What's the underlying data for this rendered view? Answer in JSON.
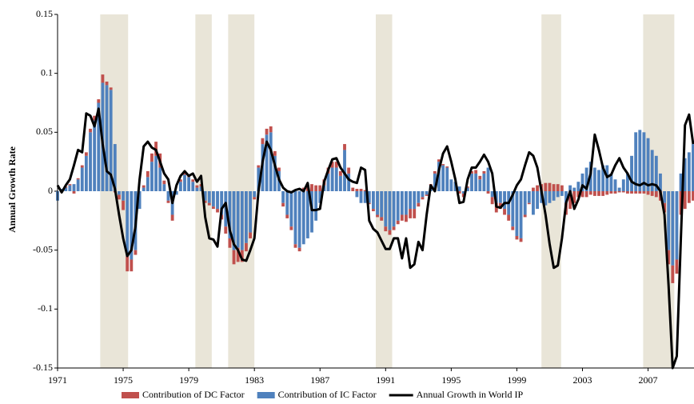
{
  "chart_data": {
    "type": "bar",
    "y_label": "Annual Growth Rate",
    "x": [
      1971,
      1971.25,
      1971.5,
      1971.75,
      1972,
      1972.25,
      1972.5,
      1972.75,
      1973,
      1973.25,
      1973.5,
      1973.75,
      1974,
      1974.25,
      1974.5,
      1974.75,
      1975,
      1975.25,
      1975.5,
      1975.75,
      1976,
      1976.25,
      1976.5,
      1976.75,
      1977,
      1977.25,
      1977.5,
      1977.75,
      1978,
      1978.25,
      1978.5,
      1978.75,
      1979,
      1979.25,
      1979.5,
      1979.75,
      1980,
      1980.25,
      1980.5,
      1980.75,
      1981,
      1981.25,
      1981.5,
      1981.75,
      1982,
      1982.25,
      1982.5,
      1982.75,
      1983,
      1983.25,
      1983.5,
      1983.75,
      1984,
      1984.25,
      1984.5,
      1984.75,
      1985,
      1985.25,
      1985.5,
      1985.75,
      1986,
      1986.25,
      1986.5,
      1986.75,
      1987,
      1987.25,
      1987.5,
      1987.75,
      1988,
      1988.25,
      1988.5,
      1988.75,
      1989,
      1989.25,
      1989.5,
      1989.75,
      1990,
      1990.25,
      1990.5,
      1990.75,
      1991,
      1991.25,
      1991.5,
      1991.75,
      1992,
      1992.25,
      1992.5,
      1992.75,
      1993,
      1993.25,
      1993.5,
      1993.75,
      1994,
      1994.25,
      1994.5,
      1994.75,
      1995,
      1995.25,
      1995.5,
      1995.75,
      1996,
      1996.25,
      1996.5,
      1996.75,
      1997,
      1997.25,
      1997.5,
      1997.75,
      1998,
      1998.25,
      1998.5,
      1998.75,
      1999,
      1999.25,
      1999.5,
      1999.75,
      2000,
      2000.25,
      2000.5,
      2000.75,
      2001,
      2001.25,
      2001.5,
      2001.75,
      2002,
      2002.25,
      2002.5,
      2002.75,
      2003,
      2003.25,
      2003.5,
      2003.75,
      2004,
      2004.25,
      2004.5,
      2004.75,
      2005,
      2005.25,
      2005.5,
      2005.75,
      2006,
      2006.25,
      2006.5,
      2006.75,
      2007,
      2007.25,
      2007.5,
      2007.75,
      2008,
      2008.25,
      2008.5,
      2008.75,
      2009,
      2009.25,
      2009.5,
      2009.75
    ],
    "series": [
      {
        "name": "Contribution of DC Factor",
        "color": "#c0504d",
        "kind": "bar",
        "values": [
          0,
          -0.001,
          0.001,
          0.001,
          -0.002,
          0.001,
          0.002,
          0.003,
          0.003,
          0.004,
          0.003,
          0.007,
          0.003,
          0.002,
          -0.001,
          -0.004,
          -0.008,
          -0.013,
          -0.01,
          -0.004,
          0,
          0.002,
          0.005,
          0.007,
          0.012,
          0.012,
          0.003,
          -0.002,
          -0.005,
          0,
          0.002,
          0.003,
          0.002,
          0.002,
          0.002,
          0.002,
          -0.002,
          -0.002,
          -0.002,
          -0.003,
          -0.004,
          -0.006,
          -0.008,
          -0.012,
          -0.012,
          -0.01,
          -0.007,
          -0.005,
          -0.002,
          0.002,
          0.005,
          0.005,
          0.005,
          0.004,
          0.003,
          -0.003,
          -0.003,
          -0.003,
          -0.003,
          -0.003,
          0.003,
          0.005,
          0.006,
          0.005,
          0.005,
          0.005,
          0.005,
          0.005,
          0.005,
          0.004,
          0.005,
          0.005,
          0.003,
          0.002,
          0.002,
          0.001,
          -0.001,
          -0.002,
          -0.002,
          -0.003,
          -0.004,
          -0.004,
          -0.003,
          -0.003,
          -0.005,
          -0.006,
          -0.008,
          -0.008,
          -0.003,
          -0.002,
          -0.001,
          0.001,
          0.002,
          0.002,
          0.001,
          0.001,
          0,
          0,
          -0.002,
          -0.003,
          0.001,
          0.002,
          0.003,
          0.003,
          0.002,
          -0.002,
          -0.006,
          -0.008,
          -0.005,
          -0.005,
          -0.005,
          -0.003,
          -0.003,
          -0.003,
          -0.002,
          -0.001,
          0.003,
          0.005,
          0.006,
          0.007,
          0.007,
          0.006,
          0.006,
          0.005,
          -0.01,
          -0.015,
          -0.01,
          -0.005,
          -0.005,
          -0.005,
          -0.003,
          -0.004,
          -0.004,
          -0.004,
          -0.003,
          -0.002,
          -0.002,
          -0.001,
          -0.001,
          -0.002,
          -0.002,
          -0.002,
          -0.002,
          -0.002,
          -0.003,
          -0.004,
          -0.005,
          -0.008,
          -0.008,
          -0.012,
          -0.015,
          -0.012,
          -0.02,
          -0.015,
          -0.01,
          -0.008
        ]
      },
      {
        "name": "Contribution of IC Factor",
        "color": "#4f81bd",
        "kind": "bar",
        "values": [
          -0.008,
          0.002,
          0.003,
          0.005,
          0.006,
          0.01,
          0.02,
          0.03,
          0.05,
          0.06,
          0.075,
          0.092,
          0.09,
          0.086,
          0.04,
          -0.003,
          -0.008,
          -0.055,
          -0.058,
          -0.05,
          -0.015,
          0.003,
          0.012,
          0.025,
          0.03,
          0.02,
          0.006,
          -0.008,
          -0.02,
          -0.003,
          0.008,
          0.014,
          0.012,
          0.008,
          0.003,
          0.004,
          -0.008,
          -0.01,
          -0.013,
          -0.015,
          -0.02,
          -0.03,
          -0.04,
          -0.05,
          -0.048,
          -0.05,
          -0.044,
          -0.035,
          -0.005,
          0.02,
          0.04,
          0.048,
          0.05,
          0.03,
          0.017,
          -0.01,
          -0.02,
          -0.03,
          -0.045,
          -0.048,
          -0.045,
          -0.04,
          -0.035,
          -0.025,
          -0.01,
          0.005,
          0.015,
          0.02,
          0.02,
          0.013,
          0.035,
          0.015,
          0,
          -0.005,
          -0.01,
          -0.01,
          -0.01,
          -0.015,
          -0.02,
          -0.022,
          -0.03,
          -0.033,
          -0.03,
          -0.025,
          -0.02,
          -0.02,
          -0.015,
          -0.015,
          -0.01,
          -0.005,
          -0.003,
          0.005,
          0.015,
          0.025,
          0.022,
          0.02,
          0.01,
          0.008,
          0.004,
          -0.002,
          0.003,
          0.015,
          0.015,
          0.01,
          0.015,
          0.02,
          -0.005,
          -0.01,
          -0.01,
          -0.015,
          -0.02,
          -0.03,
          -0.038,
          -0.04,
          -0.02,
          -0.01,
          -0.02,
          -0.015,
          -0.01,
          -0.012,
          -0.01,
          -0.008,
          -0.005,
          -0.004,
          -0.01,
          0.005,
          0.003,
          0.008,
          0.015,
          0.02,
          0.025,
          0.02,
          0.018,
          0.022,
          0.022,
          0.015,
          0.01,
          0.003,
          0.01,
          0.015,
          0.03,
          0.05,
          0.052,
          0.05,
          0.045,
          0.035,
          0.03,
          0.015,
          -0.01,
          -0.05,
          -0.063,
          -0.058,
          0.015,
          0.028,
          0.033,
          0.04
        ]
      },
      {
        "name": "Annual Growth in World IP",
        "color": "#000000",
        "kind": "line",
        "values": [
          0.005,
          -0.001,
          0.005,
          0.01,
          0.022,
          0.035,
          0.033,
          0.066,
          0.064,
          0.055,
          0.07,
          0.04,
          0.017,
          0.014,
          0.002,
          -0.02,
          -0.04,
          -0.055,
          -0.05,
          -0.03,
          0.01,
          0.038,
          0.042,
          0.037,
          0.035,
          0.025,
          0.015,
          0.01,
          -0.01,
          0.005,
          0.013,
          0.017,
          0.013,
          0.015,
          0.008,
          0.013,
          -0.022,
          -0.04,
          -0.041,
          -0.047,
          -0.015,
          -0.01,
          -0.033,
          -0.045,
          -0.05,
          -0.058,
          -0.059,
          -0.05,
          -0.04,
          0,
          0.025,
          0.042,
          0.035,
          0.022,
          0.01,
          0.003,
          0,
          -0.001,
          0.001,
          0.002,
          0,
          0.007,
          -0.016,
          -0.016,
          -0.015,
          0.008,
          0.018,
          0.027,
          0.028,
          0.02,
          0.015,
          0.01,
          0.008,
          0.007,
          0.02,
          0.018,
          -0.025,
          -0.032,
          -0.035,
          -0.042,
          -0.049,
          -0.049,
          -0.04,
          -0.04,
          -0.057,
          -0.04,
          -0.065,
          -0.062,
          -0.043,
          -0.05,
          -0.02,
          0.005,
          0,
          0.018,
          0.032,
          0.038,
          0.025,
          0.01,
          -0.01,
          -0.009,
          0.01,
          0.02,
          0.02,
          0.025,
          0.031,
          0.025,
          0.015,
          -0.013,
          -0.014,
          -0.01,
          -0.01,
          -0.003,
          0.005,
          0.01,
          0.022,
          0.033,
          0.03,
          0.02,
          0,
          -0.02,
          -0.045,
          -0.065,
          -0.063,
          -0.04,
          -0.01,
          0,
          -0.015,
          -0.007,
          0.005,
          0.002,
          0.015,
          0.048,
          0.035,
          0.02,
          0.012,
          0.014,
          0.022,
          0.028,
          0.02,
          0.015,
          0.008,
          0.006,
          0.005,
          0.007,
          0.005,
          0.006,
          0.005,
          0,
          -0.02,
          -0.08,
          -0.15,
          -0.14,
          -0.04,
          0.056,
          0.065,
          0.04
        ]
      }
    ],
    "shaded_periods": [
      [
        1973.6,
        1975.3
      ],
      [
        1979.4,
        1980.4
      ],
      [
        1981.4,
        1983.0
      ],
      [
        1990.4,
        1991.4
      ],
      [
        2000.5,
        2001.7
      ],
      [
        2006.7,
        2008.6
      ]
    ],
    "shade_color": "#e9e5d8",
    "xlim": [
      1971,
      2009.8
    ],
    "xticks": [
      1971,
      1975,
      1979,
      1983,
      1987,
      1991,
      1995,
      1999,
      2003,
      2007
    ],
    "ylim": [
      -0.15,
      0.15
    ],
    "yticks": [
      -0.15,
      -0.1,
      -0.05,
      0,
      0.05,
      0.1,
      0.15
    ],
    "legend": "bottom"
  }
}
